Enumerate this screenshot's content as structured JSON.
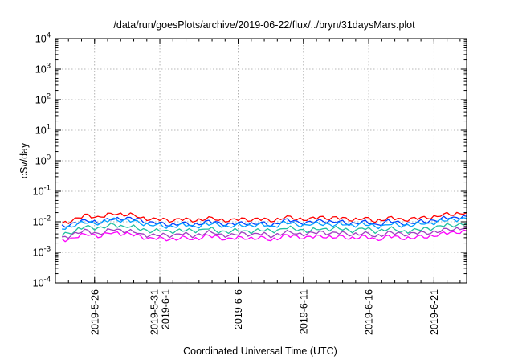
{
  "chart_data": {
    "type": "line",
    "title": "/data/run/goesPlots/archive/2019-06-22/flux/../bryn/31daysMars.plot",
    "xlabel": "Coordinated Universal Time (UTC)",
    "ylabel": "cSv/day",
    "y_scale": "log",
    "ylim": [
      0.0001,
      10000
    ],
    "xlim": [
      "2019-05-23",
      "2019-06-23T12:00"
    ],
    "grid": true,
    "legend": "none",
    "y_ticks": [
      {
        "base": "10",
        "exp": "-4",
        "value": 0.0001
      },
      {
        "base": "10",
        "exp": "-3",
        "value": 0.001
      },
      {
        "base": "10",
        "exp": "-2",
        "value": 0.01
      },
      {
        "base": "10",
        "exp": "-1",
        "value": 0.1
      },
      {
        "base": "10",
        "exp": "0",
        "value": 1
      },
      {
        "base": "10",
        "exp": "1",
        "value": 10
      },
      {
        "base": "10",
        "exp": "2",
        "value": 100
      },
      {
        "base": "10",
        "exp": "3",
        "value": 1000
      },
      {
        "base": "10",
        "exp": "4",
        "value": 10000
      }
    ],
    "x_ticks": [
      {
        "date": "2019-05-26",
        "labels": [
          "2019-5-26"
        ]
      },
      {
        "date": "2019-05-31",
        "labels": [
          "2019-5-31",
          "2019-6-1"
        ]
      },
      {
        "date": "2019-06-06",
        "labels": [
          "2019-6-6"
        ]
      },
      {
        "date": "2019-06-11",
        "labels": [
          "2019-6-11"
        ]
      },
      {
        "date": "2019-06-16",
        "labels": [
          "2019-6-16"
        ]
      },
      {
        "date": "2019-06-21",
        "labels": [
          "2019-6-21"
        ]
      }
    ],
    "x": [
      "2019-05-23",
      "2019-05-24",
      "2019-05-25",
      "2019-05-26",
      "2019-05-27",
      "2019-05-28",
      "2019-05-29",
      "2019-05-30",
      "2019-05-31",
      "2019-06-01",
      "2019-06-02",
      "2019-06-03",
      "2019-06-04",
      "2019-06-05",
      "2019-06-06",
      "2019-06-07",
      "2019-06-08",
      "2019-06-09",
      "2019-06-10",
      "2019-06-11",
      "2019-06-12",
      "2019-06-13",
      "2019-06-14",
      "2019-06-15",
      "2019-06-16",
      "2019-06-17",
      "2019-06-18",
      "2019-06-19",
      "2019-06-20",
      "2019-06-21",
      "2019-06-22",
      "2019-06-23"
    ],
    "series": [
      {
        "color": "#ff0000",
        "values": [
          0.009,
          0.012,
          0.016,
          0.014,
          0.019,
          0.018,
          0.014,
          0.012,
          0.011,
          0.012,
          0.011,
          0.013,
          0.012,
          0.011,
          0.012,
          0.012,
          0.011,
          0.014,
          0.013,
          0.012,
          0.014,
          0.013,
          0.012,
          0.013,
          0.011,
          0.013,
          0.012,
          0.012,
          0.014,
          0.016,
          0.019,
          0.02
        ]
      },
      {
        "color": "#0040ff",
        "values": [
          0.007,
          0.009,
          0.011,
          0.01,
          0.013,
          0.013,
          0.011,
          0.009,
          0.008,
          0.009,
          0.008,
          0.01,
          0.009,
          0.008,
          0.009,
          0.009,
          0.008,
          0.011,
          0.01,
          0.009,
          0.011,
          0.01,
          0.009,
          0.01,
          0.008,
          0.01,
          0.009,
          0.009,
          0.011,
          0.012,
          0.014,
          0.015
        ]
      },
      {
        "color": "#00a0ff",
        "values": [
          0.006,
          0.008,
          0.01,
          0.009,
          0.012,
          0.011,
          0.009,
          0.008,
          0.007,
          0.008,
          0.007,
          0.008,
          0.008,
          0.007,
          0.008,
          0.008,
          0.007,
          0.009,
          0.008,
          0.008,
          0.009,
          0.008,
          0.008,
          0.008,
          0.007,
          0.008,
          0.008,
          0.008,
          0.009,
          0.01,
          0.012,
          0.013
        ]
      },
      {
        "color": "#20c0a0",
        "values": [
          0.004,
          0.005,
          0.007,
          0.006,
          0.008,
          0.007,
          0.006,
          0.005,
          0.005,
          0.005,
          0.005,
          0.006,
          0.005,
          0.005,
          0.005,
          0.005,
          0.005,
          0.006,
          0.006,
          0.005,
          0.006,
          0.006,
          0.005,
          0.006,
          0.005,
          0.006,
          0.005,
          0.005,
          0.006,
          0.007,
          0.008,
          0.009
        ]
      },
      {
        "color": "#a040c0",
        "values": [
          0.003,
          0.004,
          0.005,
          0.004,
          0.006,
          0.005,
          0.004,
          0.0035,
          0.0035,
          0.004,
          0.0035,
          0.0045,
          0.004,
          0.0035,
          0.004,
          0.004,
          0.0035,
          0.0045,
          0.0042,
          0.004,
          0.0045,
          0.0042,
          0.004,
          0.0042,
          0.0035,
          0.0042,
          0.004,
          0.004,
          0.0045,
          0.005,
          0.006,
          0.0065
        ]
      },
      {
        "color": "#ff00ff",
        "values": [
          0.0025,
          0.003,
          0.004,
          0.0035,
          0.0045,
          0.004,
          0.0032,
          0.0028,
          0.0027,
          0.003,
          0.0027,
          0.0034,
          0.003,
          0.0027,
          0.003,
          0.003,
          0.0026,
          0.0034,
          0.0032,
          0.003,
          0.0034,
          0.0032,
          0.003,
          0.0032,
          0.0026,
          0.0032,
          0.003,
          0.003,
          0.0034,
          0.0038,
          0.0045,
          0.005
        ]
      }
    ]
  }
}
